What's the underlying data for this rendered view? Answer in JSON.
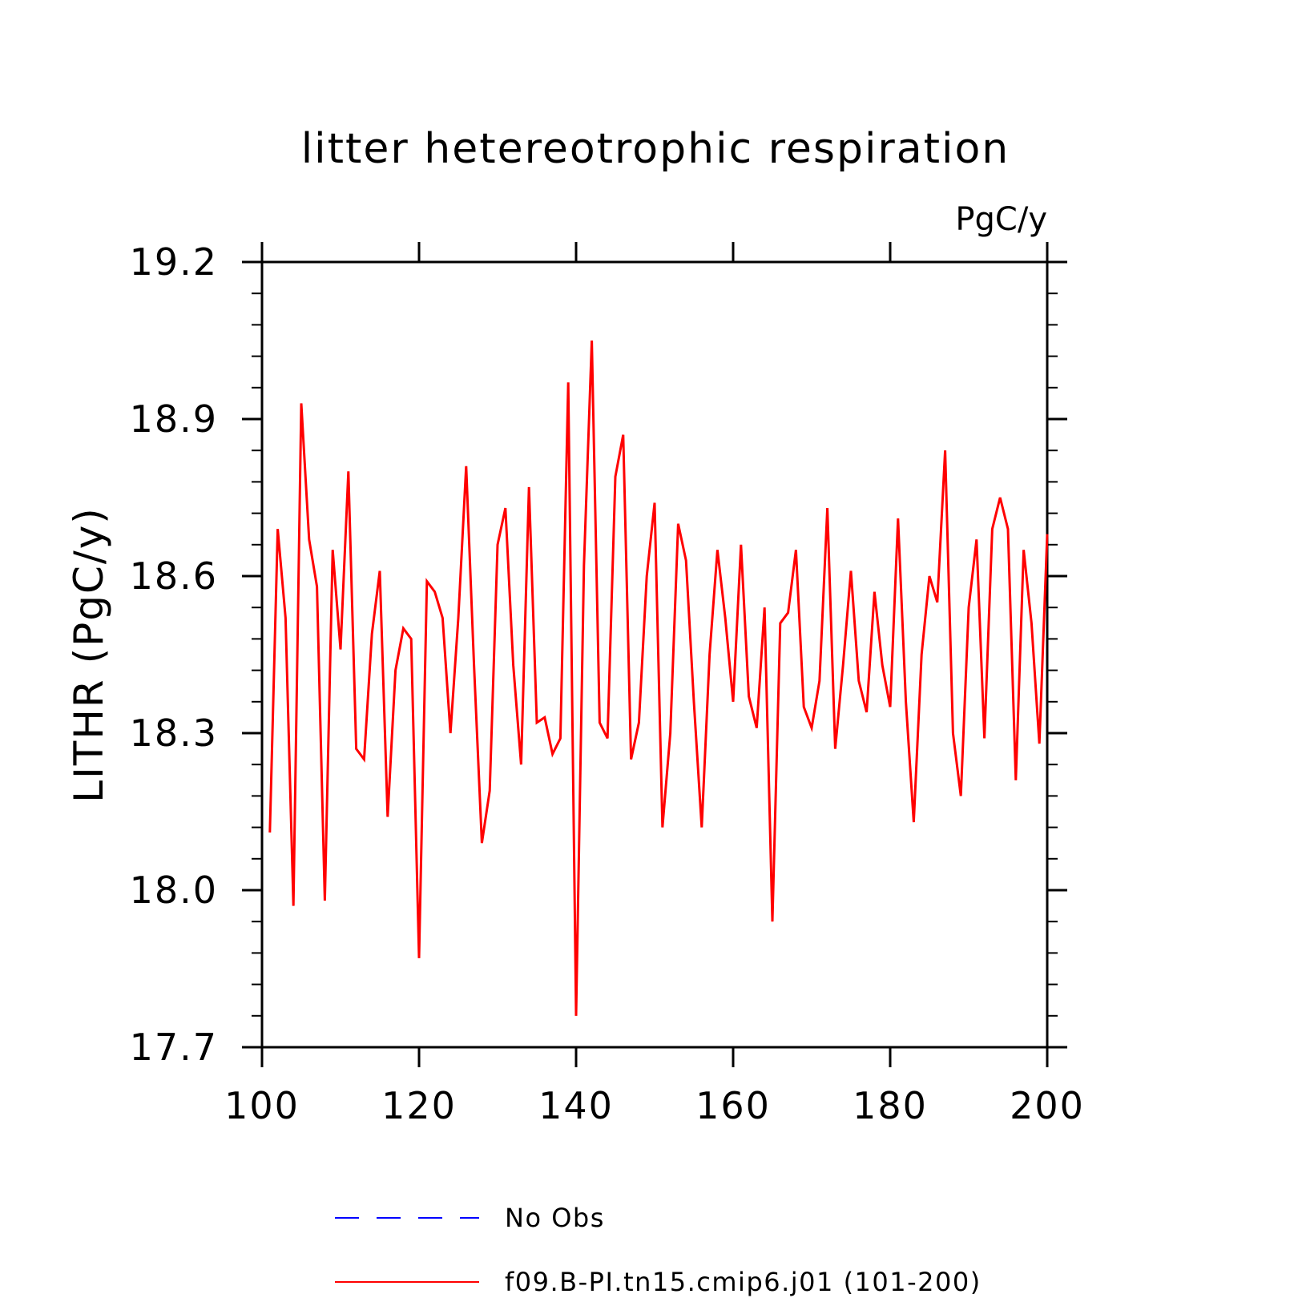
{
  "chart_data": {
    "type": "line",
    "title": "litter hetereotrophic respiration",
    "units": "PgC/y",
    "xlabel": "",
    "ylabel": "LITHR  (PgC/y)",
    "xlim": [
      100,
      200
    ],
    "ylim": [
      17.7,
      19.2
    ],
    "x_ticks": [
      100,
      120,
      140,
      160,
      180,
      200
    ],
    "x_tick_labels": [
      "100",
      "120",
      "140",
      "160",
      "180",
      "200"
    ],
    "y_ticks": [
      17.7,
      18.0,
      18.3,
      18.6,
      18.9,
      19.2
    ],
    "y_tick_labels": [
      "17.7",
      "18.0",
      "18.3",
      "18.6",
      "18.9",
      "19.2"
    ],
    "grid": false,
    "legend_position": "bottom",
    "series": [
      {
        "name": "No Obs",
        "color": "#0000ff",
        "dash": true,
        "x": [],
        "values": []
      },
      {
        "name": "f09.B-PI.tn15.cmip6.j01 (101-200)",
        "color": "#ff0000",
        "dash": false,
        "x": [
          101,
          102,
          103,
          104,
          105,
          106,
          107,
          108,
          109,
          110,
          111,
          112,
          113,
          114,
          115,
          116,
          117,
          118,
          119,
          120,
          121,
          122,
          123,
          124,
          125,
          126,
          127,
          128,
          129,
          130,
          131,
          132,
          133,
          134,
          135,
          136,
          137,
          138,
          139,
          140,
          141,
          142,
          143,
          144,
          145,
          146,
          147,
          148,
          149,
          150,
          151,
          152,
          153,
          154,
          155,
          156,
          157,
          158,
          159,
          160,
          161,
          162,
          163,
          164,
          165,
          166,
          167,
          168,
          169,
          170,
          171,
          172,
          173,
          174,
          175,
          176,
          177,
          178,
          179,
          180,
          181,
          182,
          183,
          184,
          185,
          186,
          187,
          188,
          189,
          190,
          191,
          192,
          193,
          194,
          195,
          196,
          197,
          198,
          199,
          200
        ],
        "values": [
          18.11,
          18.69,
          18.52,
          17.97,
          18.93,
          18.67,
          18.58,
          17.98,
          18.65,
          18.46,
          18.8,
          18.27,
          18.25,
          18.49,
          18.61,
          18.14,
          18.42,
          18.5,
          18.48,
          17.87,
          18.59,
          18.57,
          18.52,
          18.3,
          18.52,
          18.81,
          18.43,
          18.09,
          18.19,
          18.66,
          18.73,
          18.43,
          18.24,
          18.77,
          18.32,
          18.33,
          18.26,
          18.29,
          18.97,
          17.76,
          18.62,
          19.05,
          18.32,
          18.29,
          18.79,
          18.87,
          18.25,
          18.32,
          18.6,
          18.74,
          18.12,
          18.3,
          18.7,
          18.63,
          18.36,
          18.12,
          18.45,
          18.65,
          18.52,
          18.36,
          18.66,
          18.37,
          18.31,
          18.54,
          17.94,
          18.51,
          18.53,
          18.65,
          18.35,
          18.31,
          18.4,
          18.73,
          18.27,
          18.43,
          18.61,
          18.4,
          18.34,
          18.57,
          18.43,
          18.35,
          18.71,
          18.36,
          18.13,
          18.45,
          18.6,
          18.55,
          18.84,
          18.3,
          18.18,
          18.54,
          18.67,
          18.29,
          18.69,
          18.75,
          18.69,
          18.21,
          18.65,
          18.51,
          18.28,
          18.68
        ]
      }
    ]
  }
}
